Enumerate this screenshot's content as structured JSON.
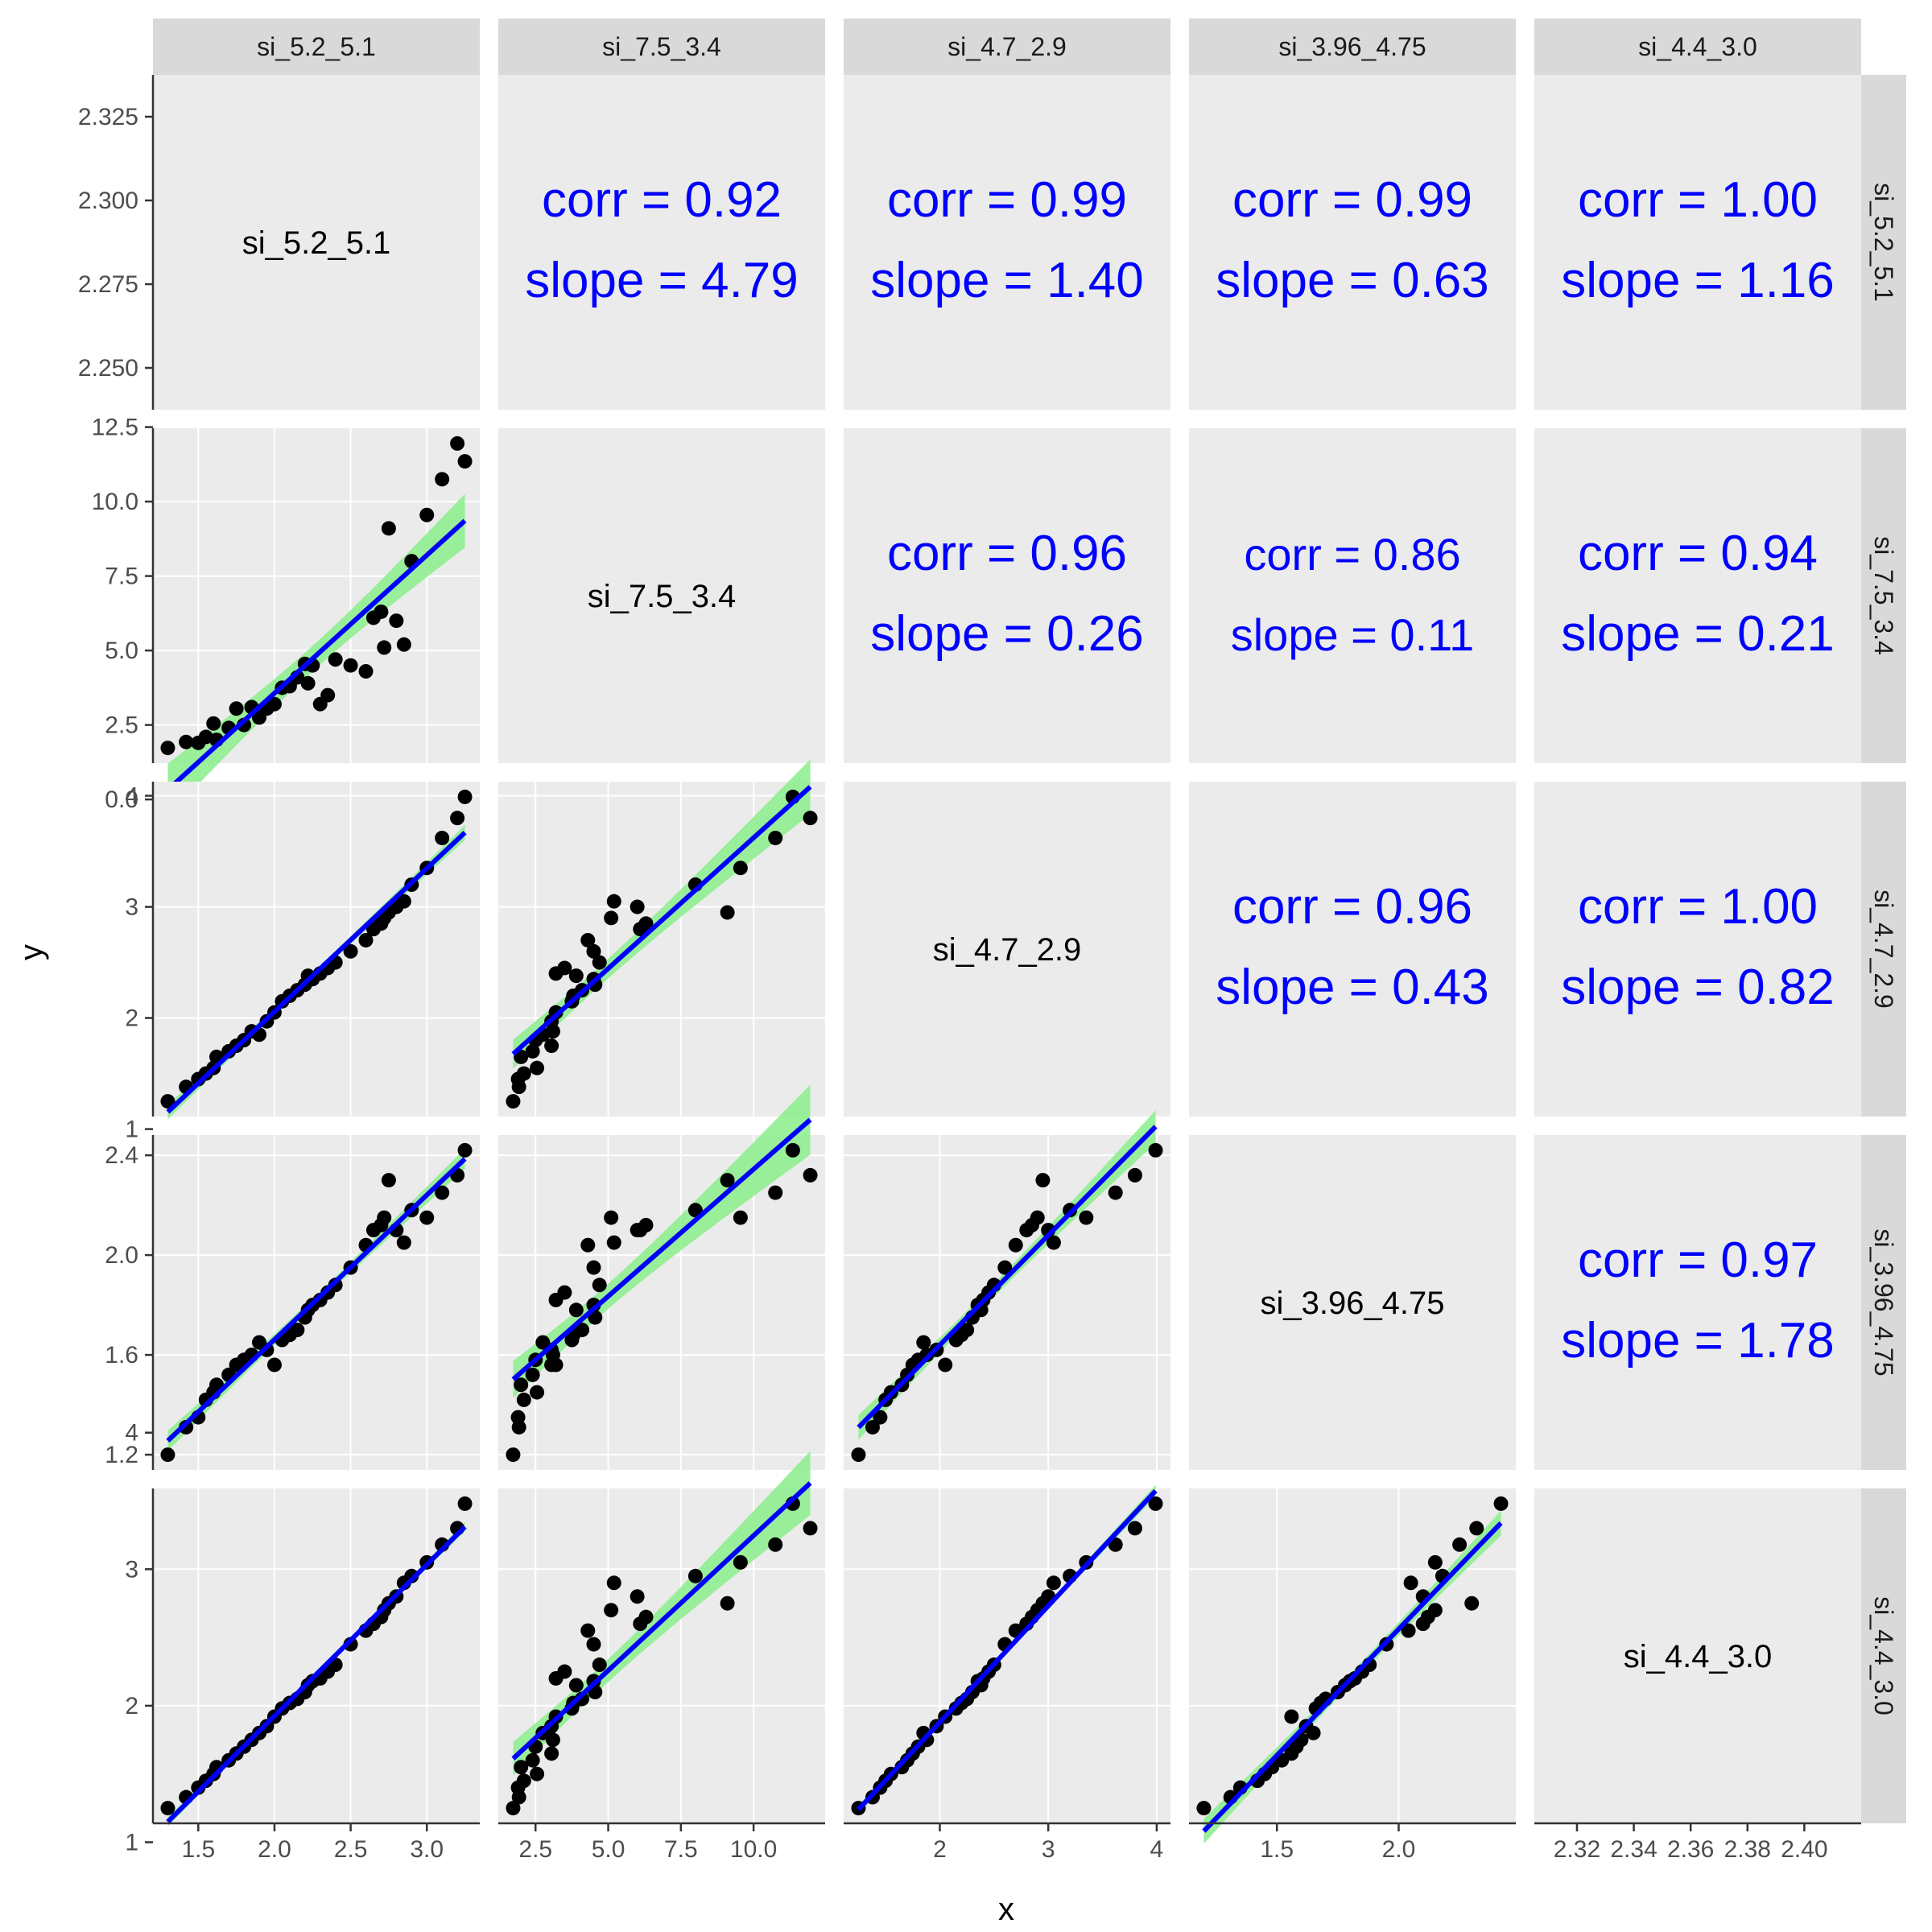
{
  "axis_titles": {
    "x": "x",
    "y": "y"
  },
  "colors": {
    "point": "#000000",
    "fit_line": "#0000ff",
    "ribbon": "#90ee90",
    "corr_text": "#0000ff",
    "panel": "#ebebeb",
    "strip": "#d9d9d9"
  },
  "chart_data": {
    "type": "scatter",
    "variables": [
      "si_5.2_5.1",
      "si_7.5_3.4",
      "si_4.7_2.9",
      "si_3.96_4.75",
      "si_4.4_3.0"
    ],
    "x_axis_ticks": [
      [
        "1.5",
        "2.0",
        "2.5",
        "3.0"
      ],
      [
        "2.5",
        "5.0",
        "7.5",
        "10.0"
      ],
      [
        "2",
        "3",
        "4"
      ],
      [
        "1.5",
        "2.0"
      ],
      [
        "2.32",
        "2.34",
        "2.36",
        "2.38",
        "2.40"
      ]
    ],
    "y_axis_ticks": [
      [
        "2.325",
        "2.300",
        "2.275",
        "2.250"
      ],
      [
        "12.5",
        "10.0",
        "7.5",
        "5.0",
        "2.5",
        "0.0"
      ],
      [
        "4",
        "3",
        "2",
        "1"
      ],
      [
        "2.4",
        "2.0",
        "1.6",
        "1.2"
      ],
      [
        "4",
        "3",
        "2",
        "1"
      ]
    ],
    "correlations": [
      {
        "row": 0,
        "col": 1,
        "corr": "corr = 0.92",
        "slope": "slope = 4.79"
      },
      {
        "row": 0,
        "col": 2,
        "corr": "corr = 0.99",
        "slope": "slope = 1.40"
      },
      {
        "row": 0,
        "col": 3,
        "corr": "corr = 0.99",
        "slope": "slope = 0.63"
      },
      {
        "row": 0,
        "col": 4,
        "corr": "corr = 1.00",
        "slope": "slope = 1.16"
      },
      {
        "row": 1,
        "col": 2,
        "corr": "corr = 0.96",
        "slope": "slope = 0.26"
      },
      {
        "row": 1,
        "col": 3,
        "corr": "corr = 0.86",
        "slope": "slope = 0.11"
      },
      {
        "row": 1,
        "col": 4,
        "corr": "corr = 0.94",
        "slope": "slope = 0.21"
      },
      {
        "row": 2,
        "col": 3,
        "corr": "corr = 0.96",
        "slope": "slope = 0.43"
      },
      {
        "row": 2,
        "col": 4,
        "corr": "corr = 1.00",
        "slope": "slope = 0.82"
      },
      {
        "row": 3,
        "col": 4,
        "corr": "corr = 0.97",
        "slope": "slope = 1.78"
      }
    ],
    "observations": [
      [
        1.3,
        1.73,
        1.25,
        1.2,
        1.25
      ],
      [
        1.42,
        1.93,
        1.38,
        1.31,
        1.33
      ],
      [
        1.5,
        1.9,
        1.45,
        1.35,
        1.4
      ],
      [
        1.55,
        2.1,
        1.5,
        1.42,
        1.45
      ],
      [
        1.6,
        2.55,
        1.55,
        1.45,
        1.5
      ],
      [
        1.62,
        2.0,
        1.65,
        1.48,
        1.55
      ],
      [
        1.7,
        2.4,
        1.7,
        1.52,
        1.6
      ],
      [
        1.75,
        3.05,
        1.75,
        1.56,
        1.65
      ],
      [
        1.8,
        2.5,
        1.8,
        1.58,
        1.7
      ],
      [
        1.85,
        3.1,
        1.88,
        1.6,
        1.75
      ],
      [
        1.9,
        2.75,
        1.85,
        1.65,
        1.8
      ],
      [
        1.95,
        3.05,
        1.97,
        1.62,
        1.85
      ],
      [
        2.0,
        3.2,
        2.05,
        1.56,
        1.92
      ],
      [
        2.05,
        3.75,
        2.15,
        1.66,
        1.98
      ],
      [
        2.1,
        3.8,
        2.2,
        1.68,
        2.02
      ],
      [
        2.15,
        4.1,
        2.25,
        1.7,
        2.05
      ],
      [
        2.2,
        4.55,
        2.3,
        1.75,
        2.1
      ],
      [
        2.25,
        4.5,
        2.35,
        1.8,
        2.18
      ],
      [
        2.22,
        3.9,
        2.38,
        1.78,
        2.15
      ],
      [
        2.3,
        3.2,
        2.4,
        1.82,
        2.2
      ],
      [
        2.35,
        3.5,
        2.45,
        1.85,
        2.25
      ],
      [
        2.4,
        4.7,
        2.5,
        1.88,
        2.3
      ],
      [
        2.5,
        4.5,
        2.6,
        1.95,
        2.45
      ],
      [
        2.6,
        4.3,
        2.7,
        2.04,
        2.55
      ],
      [
        2.65,
        6.1,
        2.8,
        2.1,
        2.6
      ],
      [
        2.7,
        6.3,
        2.85,
        2.12,
        2.65
      ],
      [
        2.72,
        5.1,
        2.9,
        2.15,
        2.7
      ],
      [
        2.75,
        9.1,
        2.95,
        2.3,
        2.75
      ],
      [
        2.8,
        6.0,
        3.0,
        2.1,
        2.8
      ],
      [
        2.85,
        5.2,
        3.05,
        2.05,
        2.9
      ],
      [
        2.9,
        8.0,
        3.2,
        2.18,
        2.95
      ],
      [
        3.0,
        9.55,
        3.35,
        2.15,
        3.05
      ],
      [
        3.1,
        10.75,
        3.62,
        2.25,
        3.18
      ],
      [
        3.2,
        11.95,
        3.8,
        2.32,
        3.3
      ],
      [
        3.25,
        11.35,
        3.99,
        2.42,
        3.48
      ]
    ]
  }
}
